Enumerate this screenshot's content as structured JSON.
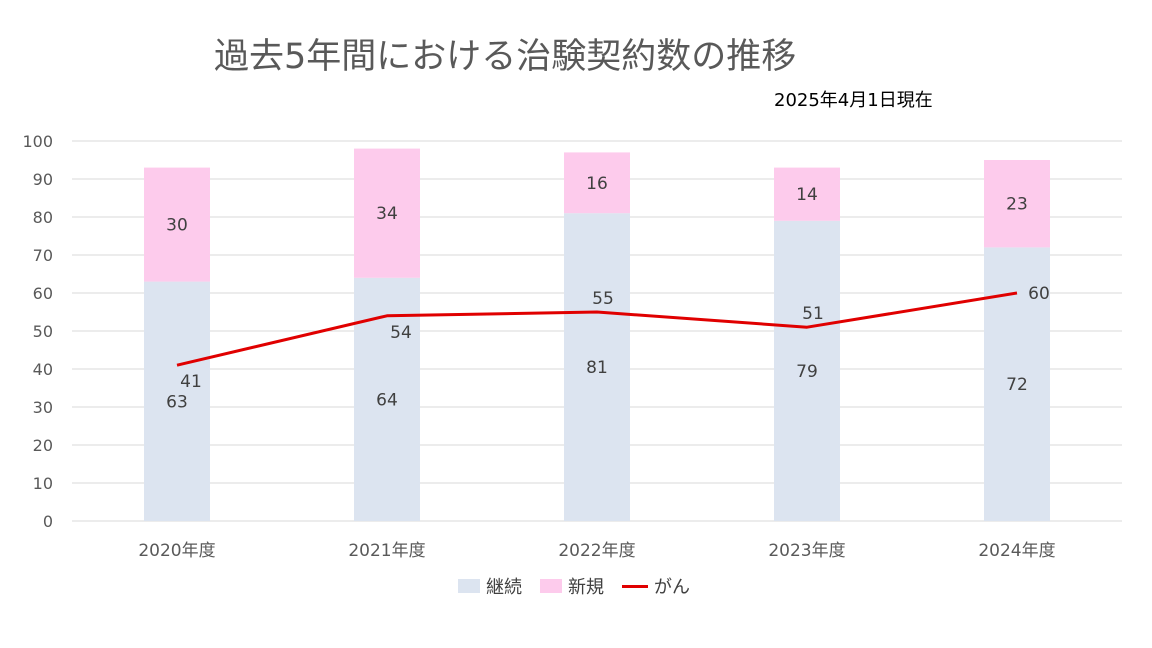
{
  "title": "過去5年間における治験契約数の推移",
  "subtitle": "2025年4月1日現在",
  "colors": {
    "continuing": "#dce4f0",
    "new": "#fdcbec",
    "cancer": "#e00000",
    "grid": "#d9d9d9",
    "axis_text": "#595959",
    "label_text": "#404040"
  },
  "chart_data": {
    "type": "bar",
    "stacked": true,
    "categories": [
      "2020年度",
      "2021年度",
      "2022年度",
      "2023年度",
      "2024年度"
    ],
    "series": [
      {
        "name": "継続",
        "type": "bar",
        "values": [
          63,
          64,
          81,
          79,
          72
        ]
      },
      {
        "name": "新規",
        "type": "bar",
        "values": [
          30,
          34,
          16,
          14,
          23
        ]
      },
      {
        "name": "がん",
        "type": "line",
        "values": [
          41,
          54,
          55,
          51,
          60
        ]
      }
    ],
    "ylim": [
      0,
      100
    ],
    "yticks": [
      0,
      10,
      20,
      30,
      40,
      50,
      60,
      70,
      80,
      90,
      100
    ],
    "grid": true,
    "legend": "bottom"
  }
}
